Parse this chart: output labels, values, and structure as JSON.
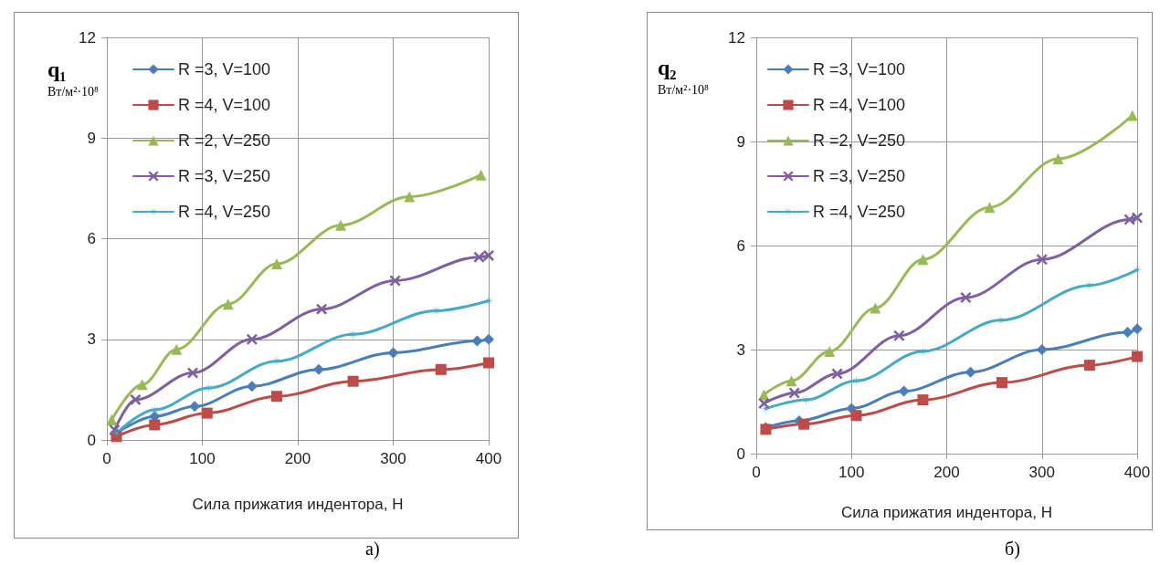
{
  "chart_data": [
    {
      "type": "line",
      "ylabel": "q₁ Вт/м²·10⁸",
      "xlabel": "Сила прижатия индентора, Н",
      "xlim": [
        0,
        400
      ],
      "xticks": [
        0,
        100,
        200,
        300,
        400
      ],
      "ylim": [
        0,
        12
      ],
      "yticks": [
        0,
        3,
        6,
        9,
        12
      ],
      "grid": true,
      "legend": "top left",
      "annotations": [
        "а)"
      ],
      "series": [
        {
          "name": "R =3, V=100",
          "color": "#4a7ebb",
          "marker": "diamond",
          "x": [
            10,
            50,
            92,
            152,
            222,
            300,
            388,
            400
          ],
          "values": [
            0.2,
            0.7,
            1.0,
            1.6,
            2.1,
            2.6,
            2.95,
            3.0
          ]
        },
        {
          "name": "R =4, V=100",
          "color": "#be4b48",
          "marker": "square",
          "x": [
            10,
            50,
            105,
            178,
            258,
            350,
            400
          ],
          "values": [
            0.1,
            0.45,
            0.8,
            1.3,
            1.75,
            2.1,
            2.3
          ]
        },
        {
          "name": "R =2, V=250",
          "color": "#98b954",
          "marker": "triangle",
          "x": [
            5,
            37,
            73,
            127,
            178,
            245,
            317,
            392
          ],
          "values": [
            0.6,
            1.65,
            2.7,
            4.05,
            5.25,
            6.4,
            7.25,
            7.9
          ]
        },
        {
          "name": "R =3, V=250",
          "color": "#7d60a0",
          "marker": "cross",
          "x": [
            8,
            30,
            90,
            152,
            225,
            302,
            390,
            400
          ],
          "values": [
            0.3,
            1.2,
            2.0,
            3.0,
            3.9,
            4.75,
            5.45,
            5.5
          ]
        },
        {
          "name": "R =4, V=250",
          "color": "#46aac5",
          "marker": "star",
          "x": [
            10,
            50,
            107,
            178,
            258,
            345,
            400
          ],
          "values": [
            0.2,
            0.9,
            1.55,
            2.35,
            3.15,
            3.85,
            4.15
          ]
        }
      ]
    },
    {
      "type": "line",
      "ylabel": "q₂ Вт/м²·10⁸",
      "xlabel": "Сила прижатия индентора, Н",
      "xlim": [
        0,
        400
      ],
      "xticks": [
        0,
        100,
        200,
        300,
        400
      ],
      "ylim": [
        0,
        12
      ],
      "yticks": [
        0,
        3,
        6,
        9,
        12
      ],
      "grid": true,
      "legend": "top left",
      "annotations": [
        "б)"
      ],
      "series": [
        {
          "name": "R =3, V=100",
          "color": "#4a7ebb",
          "marker": "diamond",
          "x": [
            10,
            45,
            100,
            155,
            225,
            300,
            390,
            400
          ],
          "values": [
            0.75,
            0.95,
            1.3,
            1.8,
            2.35,
            3.0,
            3.5,
            3.6
          ]
        },
        {
          "name": "R =4, V=100",
          "color": "#be4b48",
          "marker": "square",
          "x": [
            10,
            50,
            105,
            175,
            258,
            350,
            400
          ],
          "values": [
            0.7,
            0.85,
            1.1,
            1.55,
            2.05,
            2.55,
            2.8
          ]
        },
        {
          "name": "R =2, V=250",
          "color": "#98b954",
          "marker": "triangle",
          "x": [
            8,
            37,
            77,
            125,
            175,
            245,
            317,
            395
          ],
          "values": [
            1.7,
            2.1,
            2.95,
            4.2,
            5.6,
            7.1,
            8.5,
            9.75
          ]
        },
        {
          "name": "R =3, V=250",
          "color": "#7d60a0",
          "marker": "cross",
          "x": [
            8,
            40,
            85,
            150,
            220,
            300,
            392,
            400
          ],
          "values": [
            1.45,
            1.75,
            2.3,
            3.4,
            4.5,
            5.6,
            6.75,
            6.8
          ]
        },
        {
          "name": "R =4, V=250",
          "color": "#46aac5",
          "marker": "star",
          "x": [
            10,
            52,
            105,
            175,
            257,
            350,
            400
          ],
          "values": [
            1.3,
            1.55,
            2.1,
            2.95,
            3.85,
            4.85,
            5.3
          ]
        }
      ]
    }
  ]
}
